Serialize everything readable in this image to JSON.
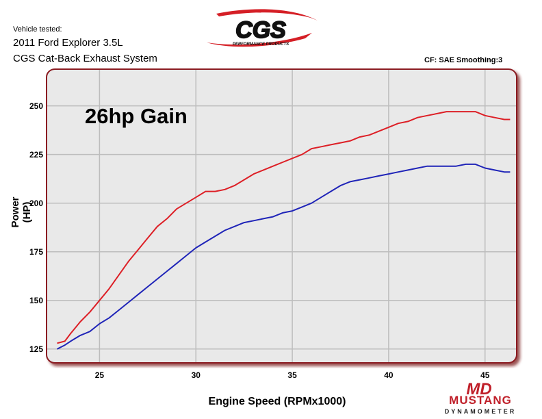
{
  "header": {
    "vehicle_label": "Vehicle tested:",
    "vehicle_line1": "2011 Ford Explorer 3.5L",
    "vehicle_line2": "CGS Cat-Back Exhaust System",
    "cf_text": "CF: SAE Smoothing:3"
  },
  "logos": {
    "cgs_text": "CGS",
    "cgs_sub": "PERFORMANCE PRODUCTS",
    "md_text": "MD",
    "md_word": "MUSTANG",
    "md_sub": "DYNAMOMETER"
  },
  "colors": {
    "series_after": "#dd1f26",
    "series_before": "#1f24b8",
    "frame": "#8b1d22",
    "plot_bg": "#e9e9e9",
    "grid": "#bdbdbd"
  },
  "chart_data": {
    "type": "line",
    "title": "",
    "annotation": "26hp Gain",
    "xlabel": "Engine Speed (RPMx1000)",
    "ylabel": "Power (HP)",
    "xlim": [
      22.5,
      46.5
    ],
    "ylim": [
      120,
      265
    ],
    "x_ticks": [
      25,
      30,
      35,
      40,
      45
    ],
    "y_ticks": [
      125,
      150,
      175,
      200,
      225,
      250
    ],
    "grid": true,
    "series": [
      {
        "x": [
          22.8,
          23.2,
          23.5,
          24.0,
          24.5,
          25.0,
          25.5,
          26.0,
          26.5,
          27.0,
          27.5,
          28.0,
          28.5,
          29.0,
          29.5,
          30.0,
          30.5,
          31.0,
          31.5,
          32.0,
          32.5,
          33.0,
          33.5,
          34.0,
          34.5,
          35.0,
          35.5,
          36.0,
          36.5,
          37.0,
          37.5,
          38.0,
          38.5,
          39.0,
          39.5,
          40.0,
          40.5,
          41.0,
          41.5,
          42.0,
          42.5,
          43.0,
          43.5,
          44.0,
          44.5,
          45.0,
          45.5,
          46.0,
          46.3
        ],
        "values": [
          128,
          129,
          133,
          139,
          144,
          150,
          156,
          163,
          170,
          176,
          182,
          188,
          192,
          197,
          200,
          203,
          206,
          206,
          207,
          209,
          212,
          215,
          217,
          219,
          221,
          223,
          225,
          228,
          229,
          230,
          231,
          232,
          234,
          235,
          237,
          239,
          241,
          242,
          244,
          245,
          246,
          247,
          247,
          247,
          247,
          245,
          244,
          243,
          243
        ]
      },
      {
        "x": [
          22.8,
          23.2,
          23.5,
          24.0,
          24.5,
          25.0,
          25.5,
          26.0,
          26.5,
          27.0,
          27.5,
          28.0,
          28.5,
          29.0,
          29.5,
          30.0,
          30.5,
          31.0,
          31.5,
          32.0,
          32.5,
          33.0,
          33.5,
          34.0,
          34.5,
          35.0,
          35.5,
          36.0,
          36.5,
          37.0,
          37.5,
          38.0,
          38.5,
          39.0,
          39.5,
          40.0,
          40.5,
          41.0,
          41.5,
          42.0,
          42.5,
          43.0,
          43.5,
          44.0,
          44.5,
          45.0,
          45.5,
          46.0,
          46.3
        ],
        "values": [
          125,
          127,
          129,
          132,
          134,
          138,
          141,
          145,
          149,
          153,
          157,
          161,
          165,
          169,
          173,
          177,
          180,
          183,
          186,
          188,
          190,
          191,
          192,
          193,
          195,
          196,
          198,
          200,
          203,
          206,
          209,
          211,
          212,
          213,
          214,
          215,
          216,
          217,
          218,
          219,
          219,
          219,
          219,
          220,
          220,
          218,
          217,
          216,
          216
        ]
      }
    ]
  }
}
